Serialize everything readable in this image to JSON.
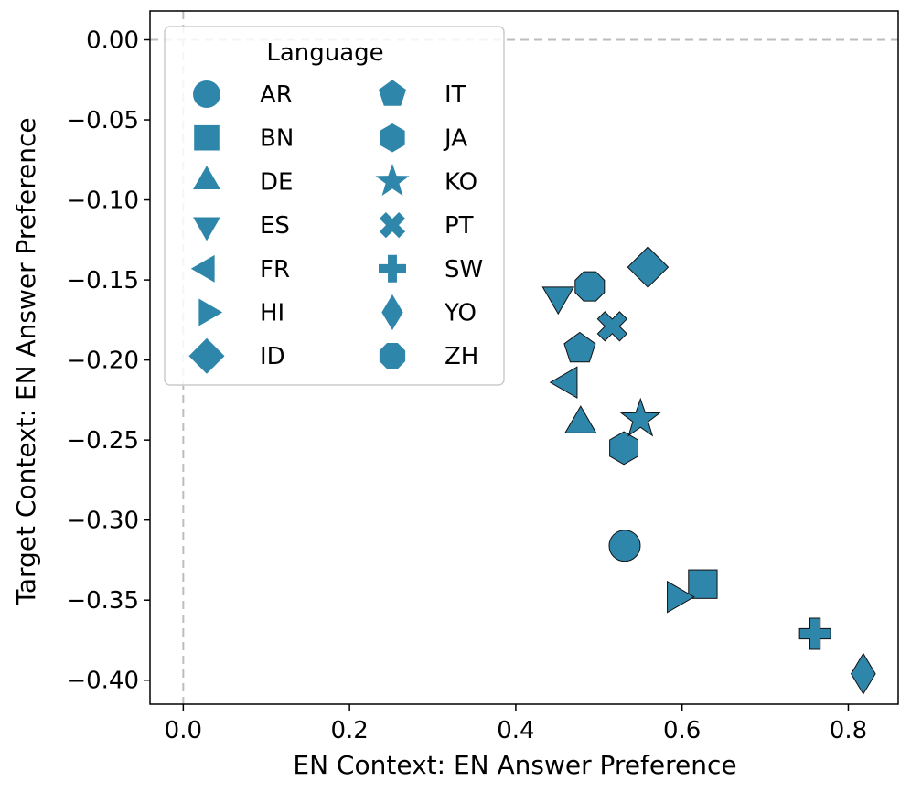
{
  "chart_data": {
    "type": "scatter",
    "xlabel": "EN Context: EN Answer Preference",
    "ylabel": "Target Context: EN Answer Preference",
    "xlim": [
      -0.04,
      0.86
    ],
    "ylim": [
      -0.415,
      0.018
    ],
    "xticks": [
      0.0,
      0.2,
      0.4,
      0.6,
      0.8
    ],
    "xtick_labels": [
      "0.0",
      "0.2",
      "0.4",
      "0.6",
      "0.8"
    ],
    "yticks": [
      0.0,
      -0.05,
      -0.1,
      -0.15,
      -0.2,
      -0.25,
      -0.3,
      -0.35,
      -0.4
    ],
    "ytick_labels": [
      "0.00",
      "−0.05",
      "−0.10",
      "−0.15",
      "−0.20",
      "−0.25",
      "−0.30",
      "−0.35",
      "−0.40"
    ],
    "reference_lines": {
      "x": 0.0,
      "y": 0.0,
      "style": "dashed"
    },
    "marker_color": "#2e86ab",
    "legend": {
      "title": "Language",
      "location": "top-left",
      "columns": 2
    },
    "points": [
      {
        "label": "AR",
        "marker": "circle",
        "x": 0.531,
        "y": -0.316
      },
      {
        "label": "BN",
        "marker": "square",
        "x": 0.625,
        "y": -0.34
      },
      {
        "label": "DE",
        "marker": "triangle-up",
        "x": 0.478,
        "y": -0.24
      },
      {
        "label": "ES",
        "marker": "triangle-down",
        "x": 0.451,
        "y": -0.16
      },
      {
        "label": "FR",
        "marker": "triangle-left",
        "x": 0.463,
        "y": -0.214
      },
      {
        "label": "HI",
        "marker": "triangle-right",
        "x": 0.593,
        "y": -0.348
      },
      {
        "label": "ID",
        "marker": "diamond",
        "x": 0.559,
        "y": -0.142
      },
      {
        "label": "IT",
        "marker": "pentagon",
        "x": 0.477,
        "y": -0.193
      },
      {
        "label": "JA",
        "marker": "hexagon",
        "x": 0.53,
        "y": -0.255
      },
      {
        "label": "KO",
        "marker": "star",
        "x": 0.55,
        "y": -0.237
      },
      {
        "label": "PT",
        "marker": "x-filled",
        "x": 0.516,
        "y": -0.179
      },
      {
        "label": "SW",
        "marker": "plus-filled",
        "x": 0.76,
        "y": -0.371
      },
      {
        "label": "YO",
        "marker": "thin-diamond",
        "x": 0.818,
        "y": -0.396
      },
      {
        "label": "ZH",
        "marker": "octagon",
        "x": 0.489,
        "y": -0.154
      }
    ]
  }
}
